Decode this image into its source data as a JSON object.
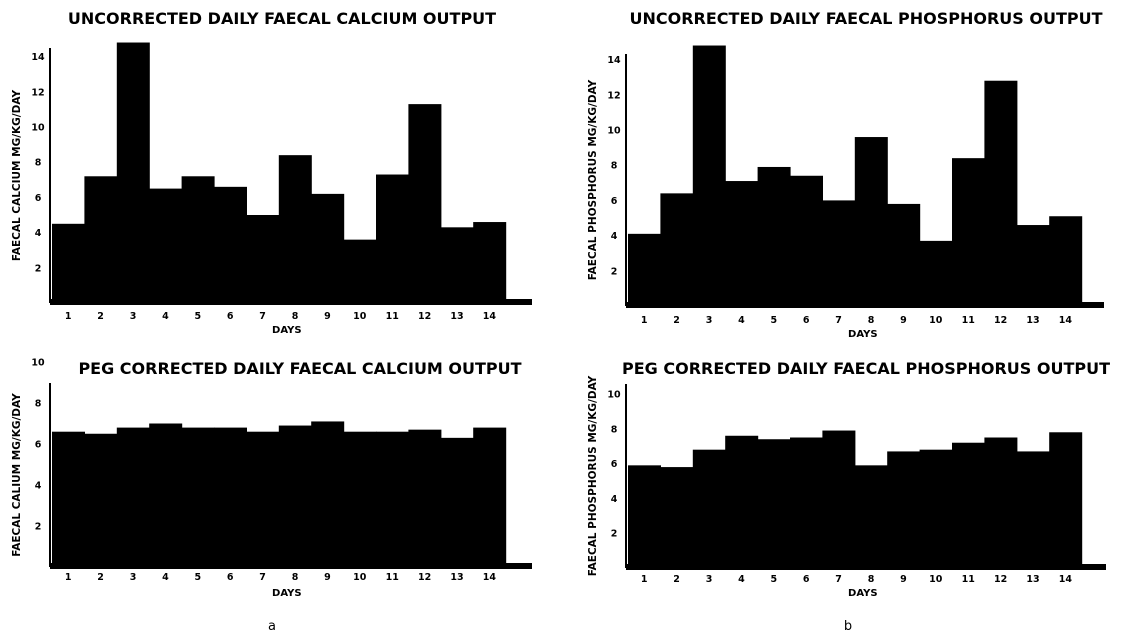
{
  "figure_labels": {
    "a": "a",
    "b": "b"
  },
  "chart_data": [
    {
      "type": "bar",
      "title": "UNCORRECTED DAILY FAECAL CALCIUM OUTPUT",
      "ylabel": "FAECAL CALCIUM MG/KG/DAY",
      "xlabel": "DAYS",
      "categories": [
        "1",
        "2",
        "3",
        "4",
        "5",
        "6",
        "7",
        "8",
        "9",
        "10",
        "11",
        "12",
        "13",
        "14"
      ],
      "values": [
        4.5,
        7.2,
        14.8,
        6.5,
        7.2,
        6.6,
        5.0,
        8.4,
        6.2,
        3.6,
        7.3,
        11.3,
        4.3,
        4.6
      ],
      "yticks": [
        "2",
        "4",
        "6",
        "8",
        "10",
        "12",
        "14"
      ],
      "ylim": [
        0,
        16
      ],
      "grid": false
    },
    {
      "type": "bar",
      "title": "UNCORRECTED DAILY FAECAL PHOSPHORUS OUTPUT",
      "ylabel": "FAECAL PHOSPHORUS MG/KG/DAY",
      "xlabel": "DAYS",
      "categories": [
        "1",
        "2",
        "3",
        "4",
        "5",
        "6",
        "7",
        "8",
        "9",
        "10",
        "11",
        "12",
        "13",
        "14"
      ],
      "values": [
        4.1,
        6.4,
        14.8,
        7.1,
        7.9,
        7.4,
        6.0,
        9.6,
        5.8,
        3.7,
        8.4,
        12.8,
        4.6,
        5.1
      ],
      "yticks": [
        "2",
        "4",
        "6",
        "8",
        "10",
        "12",
        "14"
      ],
      "ylim": [
        0,
        16
      ],
      "grid": false
    },
    {
      "type": "bar",
      "title": "PEG CORRECTED DAILY FAECAL CALCIUM OUTPUT",
      "ylabel": "FAECAL CALIUM MG/KG/DAY",
      "xlabel": "DAYS",
      "categories": [
        "1",
        "2",
        "3",
        "4",
        "5",
        "6",
        "7",
        "8",
        "9",
        "10",
        "11",
        "12",
        "13",
        "14"
      ],
      "values": [
        6.6,
        6.5,
        6.8,
        7.0,
        6.8,
        6.8,
        6.6,
        6.9,
        7.1,
        6.6,
        6.6,
        6.7,
        6.3,
        6.8
      ],
      "yticks": [
        "2",
        "4",
        "6",
        "8",
        "10"
      ],
      "ylim": [
        0,
        11
      ],
      "grid": false
    },
    {
      "type": "bar",
      "title": "PEG CORRECTED DAILY FAECAL PHOSPHORUS OUTPUT",
      "ylabel": "FAECAL PHOSPHORUS MG/KG/DAY",
      "xlabel": "DAYS",
      "categories": [
        "1",
        "2",
        "3",
        "4",
        "5",
        "6",
        "7",
        "8",
        "9",
        "10",
        "11",
        "12",
        "13",
        "14"
      ],
      "values": [
        5.9,
        5.8,
        6.8,
        7.6,
        7.4,
        7.5,
        7.9,
        5.9,
        6.7,
        6.8,
        7.2,
        7.5,
        6.7,
        7.8
      ],
      "yticks": [
        "2",
        "4",
        "6",
        "8",
        "10"
      ],
      "ylim": [
        0,
        11
      ],
      "grid": false
    }
  ]
}
